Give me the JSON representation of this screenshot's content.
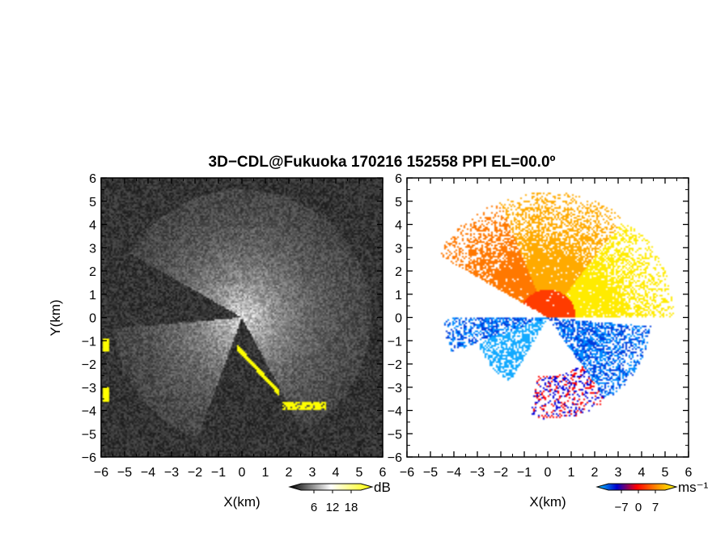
{
  "title": "3D−CDL@Fukuoka 170216 152558 PPI EL=00.0º",
  "chart_data": [
    {
      "type": "heatmap",
      "name": "reflectivity-ppi",
      "xlabel": "X(km)",
      "ylabel": "Y(km)",
      "xlim": [
        -6,
        6
      ],
      "ylim": [
        -6,
        6
      ],
      "xticks": [
        "−6",
        "−5",
        "−4",
        "−3",
        "−2",
        "−1",
        "0",
        "1",
        "2",
        "3",
        "4",
        "5",
        "6"
      ],
      "yticks": [
        "6",
        "5",
        "4",
        "3",
        "2",
        "1",
        "0",
        "−1",
        "−2",
        "−3",
        "−4",
        "−5",
        "−6"
      ],
      "background": "noise",
      "colorbar": {
        "unit": "dB",
        "ticks": [
          "6",
          "12",
          "18"
        ],
        "colors": [
          "#000000",
          "#ffffff",
          "#ffff00"
        ]
      }
    },
    {
      "type": "heatmap",
      "name": "doppler-velocity-ppi",
      "xlabel": "X(km)",
      "xlim": [
        -6,
        6
      ],
      "ylim": [
        -6,
        6
      ],
      "xticks": [
        "−6",
        "−5",
        "−4",
        "−3",
        "−2",
        "−1",
        "0",
        "1",
        "2",
        "3",
        "4",
        "5",
        "6"
      ],
      "yticks": [
        "6",
        "5",
        "4",
        "3",
        "2",
        "1",
        "0",
        "−1",
        "−2",
        "−3",
        "−4",
        "−5",
        "−6"
      ],
      "background": "white",
      "colorbar": {
        "unit": "ms⁻¹",
        "ticks": [
          "−7",
          "0",
          "7"
        ],
        "colors": [
          "#00c8ff",
          "#0000cc",
          "#ff0000",
          "#ff8c00",
          "#ffff00"
        ]
      }
    }
  ]
}
